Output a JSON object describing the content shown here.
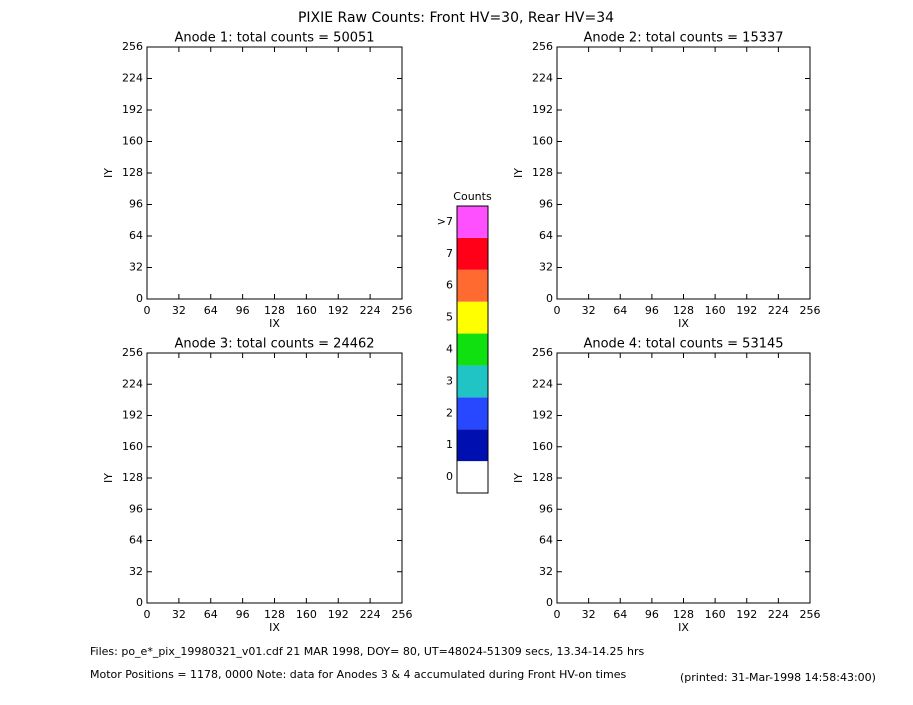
{
  "title": "PIXIE Raw Counts:  Front HV=30, Rear HV=34",
  "chart_data": [
    {
      "type": "heatmap",
      "title": "Anode 1: total counts = 50051",
      "xlabel": "IX",
      "ylabel": "IY",
      "xlim": [
        0,
        256
      ],
      "ylim": [
        0,
        256
      ],
      "xticks": [
        0,
        32,
        64,
        96,
        128,
        160,
        192,
        224,
        256
      ],
      "yticks": [
        0,
        32,
        64,
        96,
        128,
        160,
        192,
        224,
        256
      ]
    },
    {
      "type": "heatmap",
      "title": "Anode 2: total counts = 15337",
      "xlabel": "IX",
      "ylabel": "IY",
      "xlim": [
        0,
        256
      ],
      "ylim": [
        0,
        256
      ],
      "xticks": [
        0,
        32,
        64,
        96,
        128,
        160,
        192,
        224,
        256
      ],
      "yticks": [
        0,
        32,
        64,
        96,
        128,
        160,
        192,
        224,
        256
      ]
    },
    {
      "type": "heatmap",
      "title": "Anode 3: total counts = 24462",
      "xlabel": "IX",
      "ylabel": "IY",
      "xlim": [
        0,
        256
      ],
      "ylim": [
        0,
        256
      ],
      "xticks": [
        0,
        32,
        64,
        96,
        128,
        160,
        192,
        224,
        256
      ],
      "yticks": [
        0,
        32,
        64,
        96,
        128,
        160,
        192,
        224,
        256
      ]
    },
    {
      "type": "heatmap",
      "title": "Anode 4: total counts = 53145",
      "xlabel": "IX",
      "ylabel": "IY",
      "xlim": [
        0,
        256
      ],
      "ylim": [
        0,
        256
      ],
      "xticks": [
        0,
        32,
        64,
        96,
        128,
        160,
        192,
        224,
        256
      ],
      "yticks": [
        0,
        32,
        64,
        96,
        128,
        160,
        192,
        224,
        256
      ]
    },
    {
      "type": "colorbar",
      "title": "Counts",
      "categories": [
        "0",
        "1",
        "2",
        "3",
        "4",
        "5",
        "6",
        "7",
        ">7"
      ],
      "colors": [
        "#ffffff",
        "#0010b0",
        "#2848ff",
        "#20c4c4",
        "#10e010",
        "#ffff00",
        "#ff6a30",
        "#ff0018",
        "#ff50ff"
      ]
    }
  ],
  "footer": {
    "files": "Files: po_e*_pix_19980321_v01.cdf    21 MAR 1998, DOY= 80, UT=48024-51309 secs, 13.34-14.25 hrs",
    "motor": "Motor Positions = 1178, 0000   Note: data for Anodes 3 & 4 accumulated during Front HV-on times",
    "printed": "(printed: 31-Mar-1998 14:58:43:00)"
  }
}
